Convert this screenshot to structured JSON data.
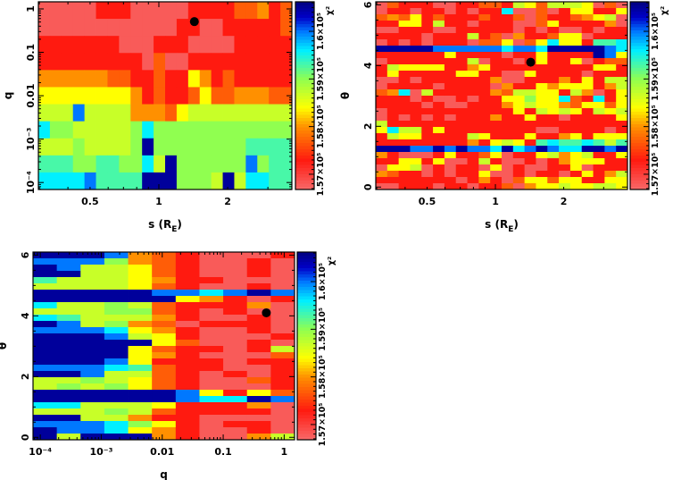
{
  "colorbar": {
    "title": "χ²",
    "range": [
      156680,
      160620
    ],
    "ticks": [
      {
        "value": 157000,
        "label": "1.57×10⁵"
      },
      {
        "value": 158000,
        "label": "1.58×10⁵"
      },
      {
        "value": 159000,
        "label": "1.59×10⁵"
      },
      {
        "value": 160000,
        "label": "1.6×10⁵"
      }
    ],
    "colors": [
      {
        "value": 156680,
        "color": "#f86a6a"
      },
      {
        "value": 157300,
        "color": "#ff1a10"
      },
      {
        "value": 158000,
        "color": "#ff9000"
      },
      {
        "value": 158400,
        "color": "#ffff00"
      },
      {
        "value": 159000,
        "color": "#90ff50"
      },
      {
        "value": 159600,
        "color": "#00f0ff"
      },
      {
        "value": 160000,
        "color": "#0078ff"
      },
      {
        "value": 160300,
        "color": "#0000c8"
      },
      {
        "value": 160620,
        "color": "#000080"
      }
    ]
  },
  "level_codes": {
    "P": 156800,
    "R": 157300,
    "O": 157700,
    "o": 158000,
    "Y": 158400,
    "L": 158700,
    "G": 159000,
    "T": 159300,
    "C": 159600,
    "B": 160000,
    "N": 160500
  },
  "chart_data": [
    {
      "type": "heatmap",
      "xlabel": {
        "main": "s (R",
        "sub": "E",
        "end": ")"
      },
      "ylabel": "q",
      "xscale": "log",
      "yscale": "log",
      "xlim": [
        0.297,
        3.82
      ],
      "ylim": [
        6.9e-05,
        1.46
      ],
      "xticks": [
        {
          "value": 0.5,
          "label": "0.5"
        },
        {
          "value": 1,
          "label": "1"
        },
        {
          "value": 2,
          "label": "2"
        }
      ],
      "yticks": [
        {
          "value": 0.0001,
          "label": "10⁻⁴"
        },
        {
          "value": 0.001,
          "label": "10⁻³"
        },
        {
          "value": 0.01,
          "label": "0.01"
        },
        {
          "value": 0.1,
          "label": "0.1"
        },
        {
          "value": 1,
          "label": "1"
        }
      ],
      "best_fit": {
        "x": 1.43,
        "y": 0.51
      },
      "grid_rows_top_to_bottom": [
        "PPPPPRRRPPPPPRRRROOoRO",
        "PPPPPPPPPPPPRRPPRRRRRO",
        "RRRRRRRPPPRRRPPPPRRRRR",
        "RRRRRRRRRPOPPRRRRRRRRR",
        "ooooooOORRORRYoRORRRRR",
        "YYYYYYYYoRORROYOOoooOO",
        "LLLBLLLLoooOYLLLLLLLLL",
        "CGGLLLLLGCGGGGGGGGGGGG",
        "LLLGLLLLGNGGGGGGGGTTTT",
        "TTTGGTTGGCLNGGGGGGBGTT",
        "CCCCBTTTTNNNGGGLNLCCTT"
      ]
    },
    {
      "type": "heatmap",
      "xlabel": {
        "main": "s (R",
        "sub": "E",
        "end": ")"
      },
      "ylabel": "θ",
      "xscale": "log",
      "yscale": "linear",
      "xlim": [
        0.297,
        3.82
      ],
      "ylim": [
        -0.08,
        6.1
      ],
      "xticks": [
        {
          "value": 0.5,
          "label": "0.5"
        },
        {
          "value": 1,
          "label": "1"
        },
        {
          "value": 2,
          "label": "2"
        }
      ],
      "yticks": [
        {
          "value": 0,
          "label": "0"
        },
        {
          "value": 2,
          "label": "2"
        },
        {
          "value": 4,
          "label": "4"
        },
        {
          "value": 6,
          "label": "6"
        }
      ],
      "best_fit": {
        "x": 1.43,
        "y": 4.11
      },
      "grid_rows_top_to_bottom": [
        "PORRRPPRROORLYOLLLYPOP",
        "PRRPRRPRPRRCPPOPRYYRRY",
        "OoOYRORRRORROPORROoYLP",
        "RRYYRLRRPRRRPPOYRRRRoP",
        "PPRRRPPRRRRRPRPRPPRPRR",
        "RRRRPRRRLROPoRROYYPRRR",
        "PRPRPRRRPOOYPOYCYYRTTC",
        "NNNNNBBBBBBCBBCNNNNNBC",
        "RRRRRRYRRRRPRRYRRRRNBY",
        "PRRRRRRRLPRRPRYRRYPROO",
        "RLYYYYRRoYRRRRRRRRRYYR",
        "RYRRRRRYYRRPPYRRRRPRRR",
        "PPRPRRRRRRoPPRRRoRYRLL",
        "PRRRRPRRRRPoRRYoYYYRoL",
        "OoCPLRRRRRoOLLYYRLoPRY",
        "RRRPRPPRPRRYYGYYCORCRY",
        "RRRRPRPPRRRoYLYYoOYYOY",
        "PRRRRRRRRRRRYRLYLYRLYL",
        "PRPRPRPRRRoRRYRRPRRRRY",
        "LRRRRRRRRRRRRRRRRRRRRR",
        "YCLLRYRRRRRRRRPPRRRRPR",
        "RLYYRRRRLYRRRYRRoYRYYY",
        "RRRRRRRRoRYLYRTCTTCTLT",
        "NNNBBNBNBBCNCBNBCCNNBN",
        "oRPPPRYRROYPRRYLoYLRRY",
        "RRYYRYPPRLRPPRPRoYYYRR",
        "PYYLPRPRRPYPRPPRRYPRRR",
        "oORRPRPRRYPPRPRRPRYRoL",
        "RRRRRRRPRoRPOYYOYYRRYY",
        "PPRRRPRRPRROPoYYLYYLLY"
      ]
    },
    {
      "type": "heatmap",
      "xlabel": {
        "main": "q",
        "sub": "",
        "end": ""
      },
      "ylabel": "θ",
      "xscale": "log",
      "yscale": "linear",
      "xlim": [
        7.6e-05,
        1.48
      ],
      "ylim": [
        -0.08,
        6.1
      ],
      "xticks": [
        {
          "value": 0.0001,
          "label": "10⁻⁴"
        },
        {
          "value": 0.001,
          "label": "10⁻³"
        },
        {
          "value": 0.01,
          "label": "0.01"
        },
        {
          "value": 0.1,
          "label": "0.1"
        },
        {
          "value": 1,
          "label": "1"
        }
      ],
      "yticks": [
        {
          "value": 0,
          "label": "0"
        },
        {
          "value": 2,
          "label": "2"
        },
        {
          "value": 4,
          "label": "4"
        },
        {
          "value": 6,
          "label": "6"
        }
      ],
      "best_fit": {
        "x": 0.51,
        "y": 4.1
      },
      "grid_rows_top_to_bottom": [
        "NNNBoORPPPR",
        "BBBGoORPPRP",
        "NBLLYORPPRP",
        "NNLLYORPPRP",
        "TLLLYoRRPPP",
        "LLLLYORPPRP",
        "NNNNNBBCBNB",
        "NNNNNNYoRPR",
        "CLLGLORRRoP",
        "LLLGGORPRPP",
        "CTLLLoRPPRP",
        "NBLGoOPRRRP",
        "BBBCYoRPPRP",
        "NNNBLYRPPPR",
        "NNNNNYOPPRP",
        "NNNNYORRPRL",
        "NNNNYoRPPPO",
        "NNNBYRRRPRR",
        "BBBCTORRPPR",
        "NNBLLORPRPR",
        "LLGLYORPPOR",
        "LGLGYORPPPR",
        "NNNNNNBYRYO",
        "NNNNNNBCCNB",
        "CCLLLYRRRoP",
        "LLLGLORRRRP",
        "NNLLoRRPPPP",
        "BBBCGYRPRRP",
        "NBBCYoRPPRP",
        "NLNNNoRPPoL"
      ]
    }
  ]
}
